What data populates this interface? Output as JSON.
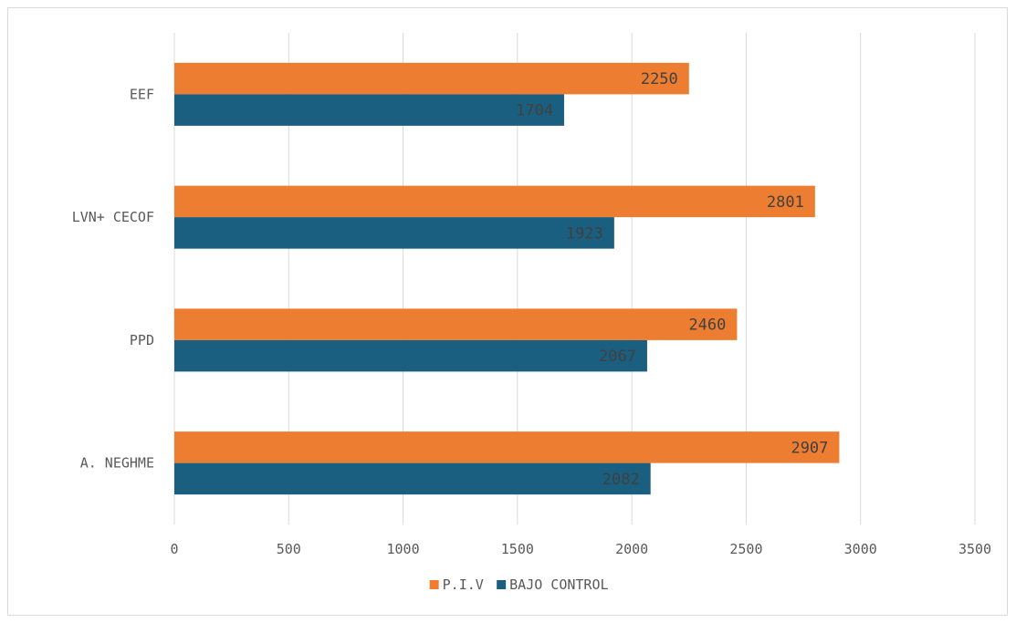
{
  "chart_data": {
    "type": "bar",
    "orientation": "horizontal",
    "categories": [
      "EEF",
      "LVN+ CECOF",
      "PPD",
      "A. NEGHME"
    ],
    "series": [
      {
        "name": "P.I.V",
        "color": "#ed7d31",
        "values": [
          2250,
          2801,
          2460,
          2907
        ]
      },
      {
        "name": "BAJO CONTROL",
        "color": "#1a5f80",
        "values": [
          1704,
          1923,
          2067,
          2082
        ]
      }
    ],
    "xlim": [
      0,
      3500
    ],
    "x_ticks": [
      0,
      500,
      1000,
      1500,
      2000,
      2500,
      3000,
      3500
    ],
    "grid": true,
    "legend_position": "bottom"
  }
}
